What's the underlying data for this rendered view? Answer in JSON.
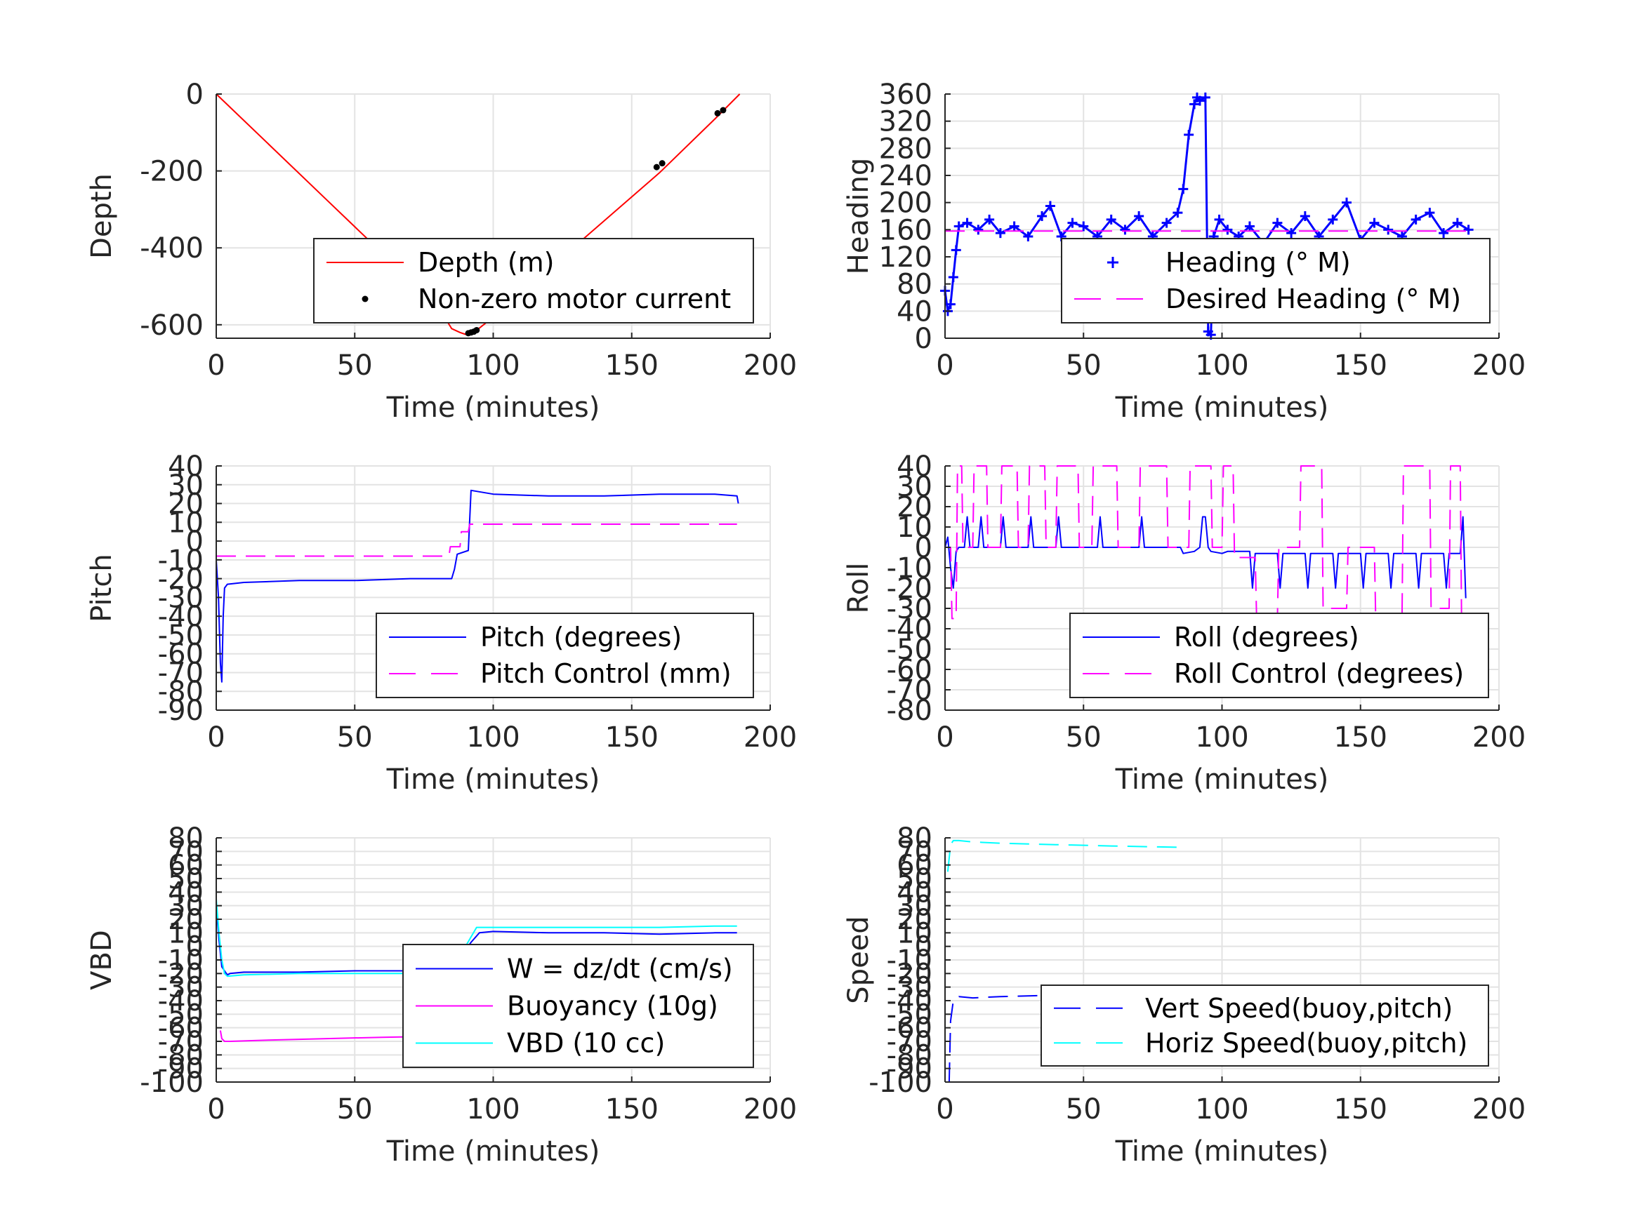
{
  "chart_data": [
    {
      "type": "line",
      "xlabel": "Time (minutes)",
      "ylabel": "Depth",
      "xlim": [
        0,
        200
      ],
      "ylim": [
        -635,
        0
      ],
      "xticks": [
        "0",
        "50",
        "100",
        "150",
        "200"
      ],
      "yticks": [
        {
          "v": 0,
          "t": "0"
        },
        {
          "v": -200,
          "t": "-200"
        },
        {
          "v": -400,
          "t": "-400"
        },
        {
          "v": -600,
          "t": "-600"
        }
      ],
      "grid": true,
      "legend_position": "bottom-right",
      "series": [
        {
          "name": "Depth (m)",
          "style": "solid",
          "color": "#ff0000",
          "x": [
            0,
            20,
            40,
            60,
            80,
            85,
            88,
            90,
            93,
            100,
            120,
            140,
            160,
            180,
            189
          ],
          "y": [
            0,
            -138,
            -276,
            -414,
            -552,
            -610,
            -620,
            -625,
            -620,
            -580,
            -455,
            -330,
            -205,
            -65,
            0
          ]
        },
        {
          "name": "Non-zero motor current",
          "style": "dots",
          "color": "#000000",
          "x": [
            91,
            92,
            93,
            94,
            159,
            161,
            181,
            183
          ],
          "y": [
            -622,
            -620,
            -618,
            -614,
            -190,
            -180,
            -50,
            -42
          ]
        }
      ]
    },
    {
      "type": "line",
      "xlabel": "Time (minutes)",
      "ylabel": "Heading",
      "xlim": [
        0,
        200
      ],
      "ylim": [
        0,
        360
      ],
      "xticks": [
        "0",
        "50",
        "100",
        "150",
        "200"
      ],
      "yticks": [
        {
          "v": 0,
          "t": "0"
        },
        {
          "v": 40,
          "t": "40"
        },
        {
          "v": 80,
          "t": "80"
        },
        {
          "v": 120,
          "t": "120"
        },
        {
          "v": 160,
          "t": "160"
        },
        {
          "v": 200,
          "t": "200"
        },
        {
          "v": 240,
          "t": "240"
        },
        {
          "v": 280,
          "t": "280"
        },
        {
          "v": 320,
          "t": "320"
        },
        {
          "v": 360,
          "t": "360"
        }
      ],
      "grid": true,
      "legend_position": "bottom-right",
      "series": [
        {
          "name": "Heading (° M)",
          "style": "plus",
          "color": "#0000ff",
          "x": [
            0,
            1,
            2,
            3,
            4,
            5,
            8,
            12,
            16,
            20,
            25,
            30,
            35,
            38,
            42,
            46,
            50,
            55,
            60,
            65,
            70,
            75,
            80,
            84,
            86,
            88,
            90,
            91,
            92,
            94,
            95,
            96,
            97,
            99,
            102,
            106,
            110,
            115,
            120,
            125,
            130,
            135,
            140,
            145,
            150,
            155,
            160,
            165,
            170,
            175,
            180,
            185,
            189
          ],
          "y": [
            70,
            40,
            50,
            90,
            130,
            165,
            170,
            160,
            175,
            155,
            165,
            150,
            180,
            195,
            150,
            170,
            165,
            150,
            175,
            160,
            180,
            150,
            170,
            185,
            220,
            300,
            345,
            355,
            350,
            355,
            10,
            5,
            150,
            175,
            160,
            150,
            165,
            140,
            170,
            155,
            180,
            150,
            175,
            200,
            145,
            170,
            160,
            150,
            175,
            185,
            155,
            170,
            160
          ]
        },
        {
          "name": "Desired Heading (° M)",
          "style": "dashed",
          "color": "#ff00ff",
          "x": [
            0,
            189
          ],
          "y": [
            158,
            158
          ]
        }
      ]
    },
    {
      "type": "line",
      "xlabel": "Time (minutes)",
      "ylabel": "Pitch",
      "xlim": [
        0,
        200
      ],
      "ylim": [
        -90,
        40
      ],
      "xticks": [
        "0",
        "50",
        "100",
        "150",
        "200"
      ],
      "yticks": [
        {
          "v": 40,
          "t": "40"
        },
        {
          "v": 30,
          "t": "30"
        },
        {
          "v": 20,
          "t": "20"
        },
        {
          "v": 10,
          "t": "10"
        },
        {
          "v": 0,
          "t": "0"
        },
        {
          "v": -10,
          "t": "-10"
        },
        {
          "v": -20,
          "t": "-20"
        },
        {
          "v": -30,
          "t": "-30"
        },
        {
          "v": -40,
          "t": "-40"
        },
        {
          "v": -50,
          "t": "-50"
        },
        {
          "v": -60,
          "t": "-60"
        },
        {
          "v": -70,
          "t": "-70"
        },
        {
          "v": -80,
          "t": "-80"
        },
        {
          "v": -90,
          "t": "-90"
        }
      ],
      "grid": true,
      "legend_position": "bottom-right",
      "series": [
        {
          "name": "Pitch (degrees)",
          "style": "solid",
          "color": "#0000ff",
          "x": [
            0,
            0.8,
            1.5,
            2,
            2.5,
            3,
            4,
            10,
            30,
            50,
            70,
            85,
            86,
            87,
            91,
            92,
            100,
            120,
            140,
            160,
            180,
            188,
            188.5
          ],
          "y": [
            -10,
            -30,
            -65,
            -75,
            -40,
            -25,
            -23,
            -22,
            -21,
            -21,
            -20,
            -20,
            -15,
            -7,
            -5,
            27,
            25,
            24,
            24,
            25,
            25,
            24,
            20
          ]
        },
        {
          "name": "Pitch Control (mm)",
          "style": "dashed",
          "color": "#ff00ff",
          "x": [
            0,
            84,
            84.5,
            88,
            88.5,
            91,
            91.5,
            188
          ],
          "y": [
            -8,
            -8,
            -3,
            -3,
            5,
            5,
            9,
            9
          ]
        }
      ]
    },
    {
      "type": "line",
      "xlabel": "Time (minutes)",
      "ylabel": "Roll",
      "xlim": [
        0,
        200
      ],
      "ylim": [
        -80,
        40
      ],
      "xticks": [
        "0",
        "50",
        "100",
        "150",
        "200"
      ],
      "yticks": [
        {
          "v": 40,
          "t": "40"
        },
        {
          "v": 30,
          "t": "30"
        },
        {
          "v": 20,
          "t": "20"
        },
        {
          "v": 10,
          "t": "10"
        },
        {
          "v": 0,
          "t": "0"
        },
        {
          "v": -10,
          "t": "-10"
        },
        {
          "v": -20,
          "t": "-20"
        },
        {
          "v": -30,
          "t": "-30"
        },
        {
          "v": -40,
          "t": "-40"
        },
        {
          "v": -50,
          "t": "-50"
        },
        {
          "v": -60,
          "t": "-60"
        },
        {
          "v": -70,
          "t": "-70"
        },
        {
          "v": -80,
          "t": "-80"
        }
      ],
      "grid": true,
      "legend_position": "bottom-right",
      "series": [
        {
          "name": "Roll (degrees)",
          "style": "solid",
          "color": "#0000ff",
          "x": [
            0,
            1,
            2,
            3,
            4,
            5,
            7,
            8,
            9,
            12,
            13,
            14,
            20,
            21,
            22,
            30,
            31,
            32,
            40,
            41,
            42,
            55,
            56,
            57,
            70,
            71,
            72,
            85,
            86,
            90,
            92,
            93,
            94,
            95,
            96,
            100,
            102,
            110,
            111,
            112,
            120,
            121,
            122,
            130,
            131,
            132,
            140,
            141,
            142,
            150,
            151,
            152,
            160,
            161,
            162,
            170,
            171,
            172,
            180,
            181,
            182,
            186,
            187,
            188
          ],
          "y": [
            0,
            5,
            -10,
            -20,
            -2,
            0,
            0,
            15,
            0,
            0,
            15,
            0,
            0,
            15,
            0,
            0,
            15,
            0,
            0,
            15,
            0,
            0,
            15,
            0,
            0,
            15,
            0,
            0,
            -3,
            -2,
            0,
            15,
            15,
            0,
            -2,
            -3,
            -2,
            -2,
            -20,
            -3,
            -3,
            -20,
            -3,
            -3,
            -20,
            -3,
            -3,
            -20,
            -3,
            -3,
            -20,
            -3,
            -3,
            -20,
            -3,
            -3,
            -20,
            -3,
            -3,
            -20,
            -3,
            -3,
            15,
            -25
          ]
        },
        {
          "name": "Roll Control (degrees)",
          "style": "dashed",
          "color": "#ff00ff",
          "x": [
            0,
            2,
            2.5,
            4,
            4.5,
            6,
            6.5,
            10,
            10.5,
            15,
            15.5,
            20,
            20.5,
            26,
            26.5,
            30,
            30.5,
            36,
            36.5,
            40,
            40.5,
            48,
            48.5,
            53,
            53.5,
            62,
            62.5,
            70,
            70.5,
            80,
            80.5,
            88,
            88.5,
            96,
            96.5,
            100,
            100.5,
            104,
            104.5,
            112,
            112.5,
            120,
            120.5,
            128,
            128.5,
            136,
            136.5,
            145,
            145.5,
            155,
            155.5,
            165,
            165.5,
            175,
            175.5,
            182,
            182.5,
            186,
            186.5,
            188
          ],
          "y": [
            0,
            0,
            -35,
            -35,
            40,
            40,
            0,
            0,
            40,
            40,
            0,
            0,
            40,
            40,
            0,
            0,
            40,
            40,
            0,
            0,
            40,
            40,
            0,
            0,
            40,
            40,
            0,
            0,
            40,
            40,
            0,
            0,
            40,
            40,
            0,
            0,
            40,
            40,
            -5,
            -5,
            -35,
            -35,
            0,
            0,
            40,
            40,
            -30,
            -30,
            0,
            0,
            -35,
            -35,
            40,
            40,
            -30,
            -30,
            40,
            40,
            -35,
            -35
          ]
        }
      ]
    },
    {
      "type": "line",
      "xlabel": "Time (minutes)",
      "ylabel": "VBD",
      "xlim": [
        0,
        200
      ],
      "ylim": [
        -100,
        80
      ],
      "xticks": [
        "0",
        "50",
        "100",
        "150",
        "200"
      ],
      "yticks": [
        {
          "v": 80,
          "t": "80"
        },
        {
          "v": 70,
          "t": "70"
        },
        {
          "v": 60,
          "t": "60"
        },
        {
          "v": 50,
          "t": "50"
        },
        {
          "v": 40,
          "t": "40"
        },
        {
          "v": 30,
          "t": "30"
        },
        {
          "v": 20,
          "t": "20"
        },
        {
          "v": 10,
          "t": "10"
        },
        {
          "v": 0,
          "t": "0"
        },
        {
          "v": -10,
          "t": "-10"
        },
        {
          "v": -20,
          "t": "-20"
        },
        {
          "v": -30,
          "t": "-30"
        },
        {
          "v": -40,
          "t": "-40"
        },
        {
          "v": -50,
          "t": "-50"
        },
        {
          "v": -60,
          "t": "-60"
        },
        {
          "v": -70,
          "t": "-70"
        },
        {
          "v": -80,
          "t": "-80"
        },
        {
          "v": -90,
          "t": "-90"
        },
        {
          "v": -100,
          "t": "-100"
        }
      ],
      "grid": true,
      "legend_position": "bottom-right",
      "series": [
        {
          "name": "W = dz/dt (cm/s)",
          "style": "solid",
          "color": "#0000ff",
          "x": [
            0,
            1,
            2,
            3,
            4,
            5,
            10,
            30,
            50,
            70,
            84,
            85,
            88,
            92,
            95,
            100,
            120,
            140,
            160,
            180,
            188
          ],
          "y": [
            30,
            5,
            -15,
            -18,
            -21,
            -20,
            -19,
            -19,
            -18,
            -18,
            -18,
            -15,
            -8,
            3,
            10,
            11,
            10,
            10,
            9,
            10,
            10
          ]
        },
        {
          "name": "Buoyancy (10g)",
          "style": "solid",
          "color": "#ff00ff",
          "x": [
            1.5,
            2,
            3,
            5,
            20,
            40,
            60,
            85
          ],
          "y": [
            -62,
            -68,
            -70,
            -70,
            -69,
            -68,
            -67,
            -66
          ]
        },
        {
          "name": "VBD (10 cc)",
          "style": "solid",
          "color": "#00ffff",
          "x": [
            0,
            1,
            2,
            3,
            4,
            10,
            30,
            50,
            70,
            85,
            90,
            94,
            100,
            120,
            140,
            160,
            180,
            188
          ],
          "y": [
            35,
            10,
            -10,
            -20,
            -22,
            -21,
            -20,
            -20,
            -20,
            -20,
            0,
            14,
            14,
            14,
            14,
            14,
            15,
            15
          ]
        }
      ]
    },
    {
      "type": "line",
      "xlabel": "Time (minutes)",
      "ylabel": "Speed",
      "xlim": [
        0,
        200
      ],
      "ylim": [
        -100,
        80
      ],
      "xticks": [
        "0",
        "50",
        "100",
        "150",
        "200"
      ],
      "yticks": [
        {
          "v": 80,
          "t": "80"
        },
        {
          "v": 70,
          "t": "70"
        },
        {
          "v": 60,
          "t": "60"
        },
        {
          "v": 50,
          "t": "50"
        },
        {
          "v": 40,
          "t": "40"
        },
        {
          "v": 30,
          "t": "30"
        },
        {
          "v": 20,
          "t": "20"
        },
        {
          "v": 10,
          "t": "10"
        },
        {
          "v": 0,
          "t": "0"
        },
        {
          "v": -10,
          "t": "-10"
        },
        {
          "v": -20,
          "t": "-20"
        },
        {
          "v": -30,
          "t": "-30"
        },
        {
          "v": -40,
          "t": "-40"
        },
        {
          "v": -50,
          "t": "-50"
        },
        {
          "v": -60,
          "t": "-60"
        },
        {
          "v": -70,
          "t": "-70"
        },
        {
          "v": -80,
          "t": "-80"
        },
        {
          "v": -90,
          "t": "-90"
        },
        {
          "v": -100,
          "t": "-100"
        }
      ],
      "grid": true,
      "legend_position": "bottom-right",
      "series": [
        {
          "name": "Vert Speed(buoy,pitch)",
          "style": "dashed",
          "color": "#0000ff",
          "x": [
            1.5,
            2,
            3,
            5,
            10,
            20,
            40,
            60,
            85
          ],
          "y": [
            -100,
            -55,
            -40,
            -37,
            -38,
            -37,
            -36,
            -35,
            -35
          ]
        },
        {
          "name": "Horiz Speed(buoy,pitch)",
          "style": "dashed",
          "color": "#00ffff",
          "x": [
            1,
            1.5,
            2,
            3,
            5,
            10,
            20,
            40,
            60,
            85
          ],
          "y": [
            55,
            65,
            75,
            78,
            78,
            77,
            76,
            75,
            74,
            73
          ]
        }
      ]
    }
  ]
}
